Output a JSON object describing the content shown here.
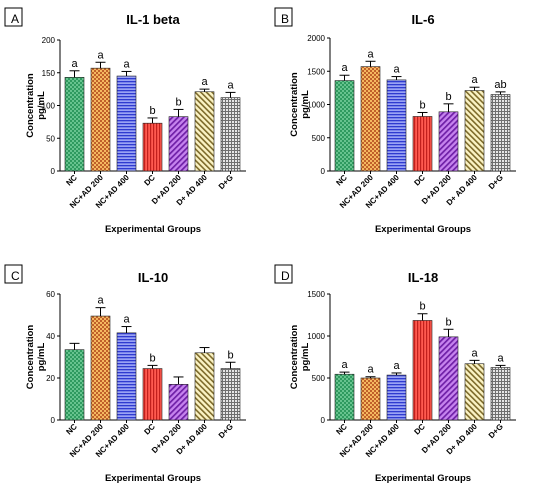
{
  "chart_data": [
    {
      "type": "bar",
      "panel": "A",
      "title": "IL-1 beta",
      "xlabel": "Experimental Groups",
      "ylabel": [
        "Concentration",
        "pg/mL"
      ],
      "ylim": [
        0,
        200
      ],
      "yticks": [
        0,
        50,
        100,
        150,
        200
      ],
      "categories": [
        "NC",
        "NC+AD 200",
        "NC+AD 400",
        "DC",
        "D+AD 200",
        "D+ AD 400",
        "D+G"
      ],
      "values": [
        143,
        157,
        145,
        73,
        83,
        121,
        112
      ],
      "errors": [
        10,
        9,
        7,
        8,
        11,
        4,
        8
      ],
      "annotations": [
        "a",
        "a",
        "a",
        "b",
        "b",
        "a",
        "a"
      ]
    },
    {
      "type": "bar",
      "panel": "B",
      "title": "IL-6",
      "xlabel": "Experimental Groups",
      "ylabel": [
        "Concentration",
        "pg/mL"
      ],
      "ylim": [
        0,
        2000
      ],
      "yticks": [
        0,
        500,
        1000,
        1500,
        2000
      ],
      "categories": [
        "NC",
        "NC+AD 200",
        "NC+AD 400",
        "DC",
        "D+AD 200",
        "D+ AD 400",
        "D+G"
      ],
      "values": [
        1360,
        1570,
        1370,
        820,
        890,
        1210,
        1150
      ],
      "errors": [
        80,
        80,
        50,
        60,
        120,
        50,
        40
      ],
      "annotations": [
        "a",
        "a",
        "a",
        "b",
        "b",
        "a",
        "ab"
      ]
    },
    {
      "type": "bar",
      "panel": "C",
      "title": "IL-10",
      "xlabel": "Experimental Groups",
      "ylabel": [
        "Concentration",
        "pg/mL"
      ],
      "ylim": [
        0,
        60
      ],
      "yticks": [
        0,
        20,
        40,
        60
      ],
      "categories": [
        "NC",
        "NC+AD 200",
        "NC+AD 400",
        "DC",
        "D+AD 200",
        "D+ AD 400",
        "D+G"
      ],
      "values": [
        33.5,
        49.5,
        41.5,
        24.5,
        17,
        32,
        24.5
      ],
      "errors": [
        3,
        4,
        3,
        1.5,
        3.5,
        2.5,
        3
      ],
      "annotations": [
        "",
        "a",
        "a",
        "b",
        "",
        "",
        "b"
      ]
    },
    {
      "type": "bar",
      "panel": "D",
      "title": "IL-18",
      "xlabel": "Experimental Groups",
      "ylabel": [
        "Concentration",
        "pg/mL"
      ],
      "ylim": [
        0,
        1500
      ],
      "yticks": [
        0,
        500,
        1000,
        1500
      ],
      "categories": [
        "NC",
        "NC+AD 200",
        "NC+AD 400",
        "DC",
        "D+AD 200",
        "D+ AD 400",
        "D+G"
      ],
      "values": [
        545,
        500,
        535,
        1185,
        990,
        670,
        625
      ],
      "errors": [
        25,
        15,
        25,
        80,
        90,
        40,
        25
      ],
      "annotations": [
        "a",
        "a",
        "a",
        "b",
        "b",
        "a",
        "a"
      ]
    }
  ],
  "bar_styles": [
    {
      "color": "#3aa86b",
      "pattern": "green-dots"
    },
    {
      "color": "#f0a040",
      "pattern": "orange-checker"
    },
    {
      "color": "#7b86f0",
      "pattern": "blue-hlines"
    },
    {
      "color": "#e8403a",
      "pattern": "red-vlines"
    },
    {
      "color": "#a24bd4",
      "pattern": "purple-diag"
    },
    {
      "color": "#f3e7a0",
      "pattern": "yellow-diag"
    },
    {
      "color": "#b9b9b9",
      "pattern": "gray-grid"
    }
  ]
}
